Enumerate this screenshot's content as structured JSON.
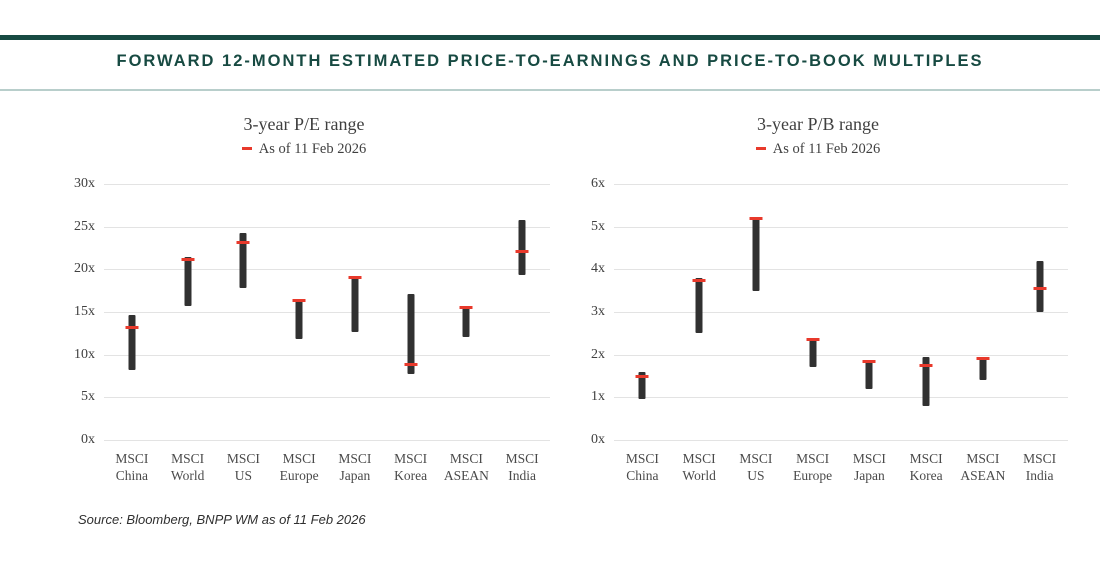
{
  "header": {
    "title": "FORWARD 12-MONTH ESTIMATED PRICE-TO-EARNINGS AND PRICE-TO-BOOK MULTIPLES"
  },
  "source": {
    "text": "Source: Bloomberg, BNPP WM as of 11 Feb 2026"
  },
  "colors": {
    "accent_teal": "#174a42",
    "separator": "#b8cecb",
    "gridline": "#e3e3e3",
    "bar": "#313131",
    "marker_red": "#e8392b",
    "text_gray": "#3f3f3f"
  },
  "chart_data": [
    {
      "type": "bar",
      "variant": "floating-range-bar-with-current-marker",
      "title": "3-year P/E range",
      "legend": {
        "label": "As of 11 Feb 2026",
        "marker": "red-dash-icon",
        "position": "top-center"
      },
      "xlabel": "",
      "ylabel": "",
      "ylim": [
        0,
        30
      ],
      "y_tick_labels": [
        "0x",
        "5x",
        "10x",
        "15x",
        "20x",
        "25x",
        "30x"
      ],
      "grid": true,
      "categories": [
        "MSCI China",
        "MSCI World",
        "MSCI US",
        "MSCI Europe",
        "MSCI Japan",
        "MSCI Korea",
        "MSCI ASEAN",
        "MSCI India"
      ],
      "category_lines": [
        [
          "MSCI",
          "China"
        ],
        [
          "MSCI",
          "World"
        ],
        [
          "MSCI",
          "US"
        ],
        [
          "MSCI",
          "Europe"
        ],
        [
          "MSCI",
          "Japan"
        ],
        [
          "MSCI",
          "Korea"
        ],
        [
          "MSCI",
          "ASEAN"
        ],
        [
          "MSCI",
          "India"
        ]
      ],
      "series": [
        {
          "name": "3-year low",
          "values": [
            8.2,
            15.7,
            17.8,
            11.8,
            12.7,
            7.7,
            12.1,
            19.3
          ]
        },
        {
          "name": "3-year high",
          "values": [
            14.7,
            21.4,
            24.3,
            16.5,
            19.2,
            17.1,
            15.6,
            25.8
          ]
        },
        {
          "name": "As of 11 Feb 2026",
          "values": [
            13.2,
            21.1,
            23.1,
            16.4,
            19.1,
            8.8,
            15.5,
            22.1
          ]
        }
      ]
    },
    {
      "type": "bar",
      "variant": "floating-range-bar-with-current-marker",
      "title": "3-year P/B range",
      "legend": {
        "label": "As of 11 Feb 2026",
        "marker": "red-dash-icon",
        "position": "top-center"
      },
      "xlabel": "",
      "ylabel": "",
      "ylim": [
        0,
        6
      ],
      "y_tick_labels": [
        "0x",
        "1x",
        "2x",
        "3x",
        "4x",
        "5x",
        "6x"
      ],
      "grid": true,
      "categories": [
        "MSCI China",
        "MSCI World",
        "MSCI US",
        "MSCI Europe",
        "MSCI Japan",
        "MSCI Korea",
        "MSCI ASEAN",
        "MSCI India"
      ],
      "category_lines": [
        [
          "MSCI",
          "China"
        ],
        [
          "MSCI",
          "World"
        ],
        [
          "MSCI",
          "US"
        ],
        [
          "MSCI",
          "Europe"
        ],
        [
          "MSCI",
          "Japan"
        ],
        [
          "MSCI",
          "Korea"
        ],
        [
          "MSCI",
          "ASEAN"
        ],
        [
          "MSCI",
          "India"
        ]
      ],
      "series": [
        {
          "name": "3-year low",
          "values": [
            0.95,
            2.5,
            3.5,
            1.7,
            1.2,
            0.8,
            1.4,
            3.0
          ]
        },
        {
          "name": "3-year high",
          "values": [
            1.6,
            3.8,
            5.2,
            2.4,
            1.85,
            1.95,
            1.9,
            4.2
          ]
        },
        {
          "name": "As of 11 Feb 2026",
          "values": [
            1.5,
            3.75,
            5.2,
            2.35,
            1.85,
            1.75,
            1.9,
            3.55
          ]
        }
      ]
    }
  ]
}
